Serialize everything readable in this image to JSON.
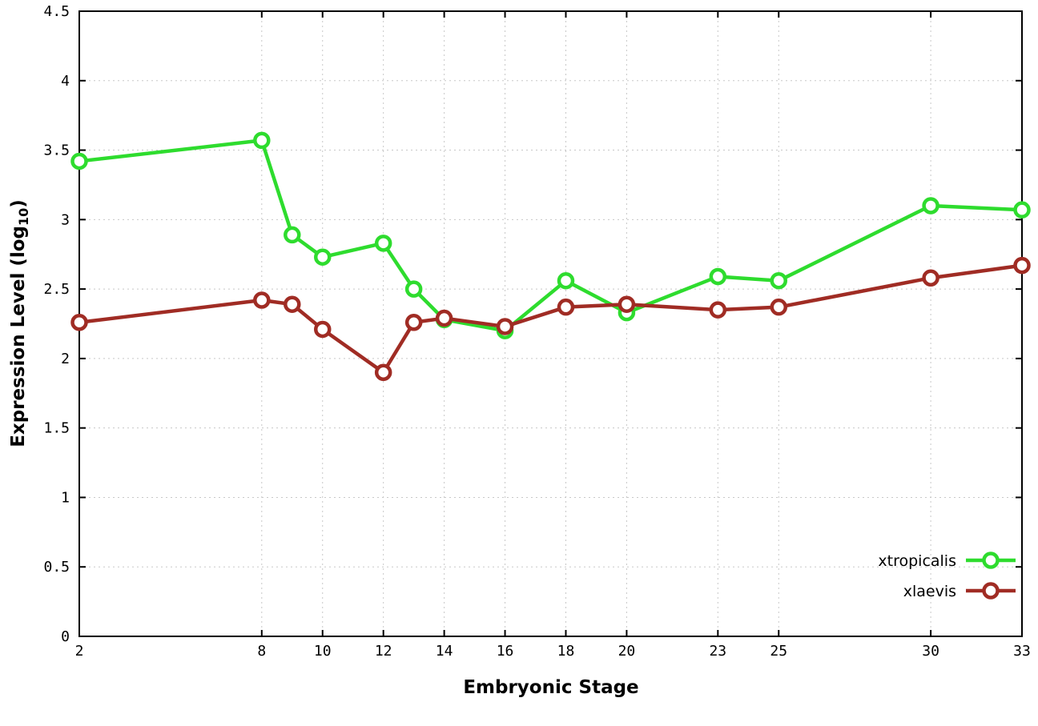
{
  "chart_data": {
    "type": "line",
    "x": [
      2,
      8,
      9,
      10,
      12,
      13,
      14,
      16,
      18,
      20,
      23,
      25,
      30,
      33
    ],
    "series": [
      {
        "name": "xtropicalis",
        "color": "#2edc2e",
        "values": [
          3.42,
          3.57,
          2.89,
          2.73,
          2.83,
          2.5,
          2.28,
          2.2,
          2.56,
          2.33,
          2.59,
          2.56,
          3.1,
          3.07
        ]
      },
      {
        "name": "xlaevis",
        "color": "#a02c24",
        "values": [
          2.26,
          2.42,
          2.39,
          2.21,
          1.9,
          2.26,
          2.29,
          2.23,
          2.37,
          2.39,
          2.35,
          2.37,
          2.58,
          2.67
        ]
      }
    ],
    "xlabel": "Embryonic Stage",
    "ylabel": {
      "pre": "Expression Level (log",
      "sub": "10",
      "post": ")"
    },
    "xlim": [
      2,
      33
    ],
    "ylim": [
      0,
      4.5
    ],
    "xticks": [
      2,
      8,
      10,
      12,
      14,
      16,
      18,
      20,
      23,
      25,
      30,
      33
    ],
    "yticks": [
      0,
      0.5,
      1,
      1.5,
      2,
      2.5,
      3,
      3.5,
      4,
      4.5
    ],
    "grid": true,
    "legend_position": "bottom-right",
    "legend": [
      "xtropicalis",
      "xlaevis"
    ]
  },
  "styles": {
    "background": "#ffffff",
    "grid_color": "#c8c8c8",
    "axis_color": "#000000",
    "marker_fill": "#ffffff"
  }
}
